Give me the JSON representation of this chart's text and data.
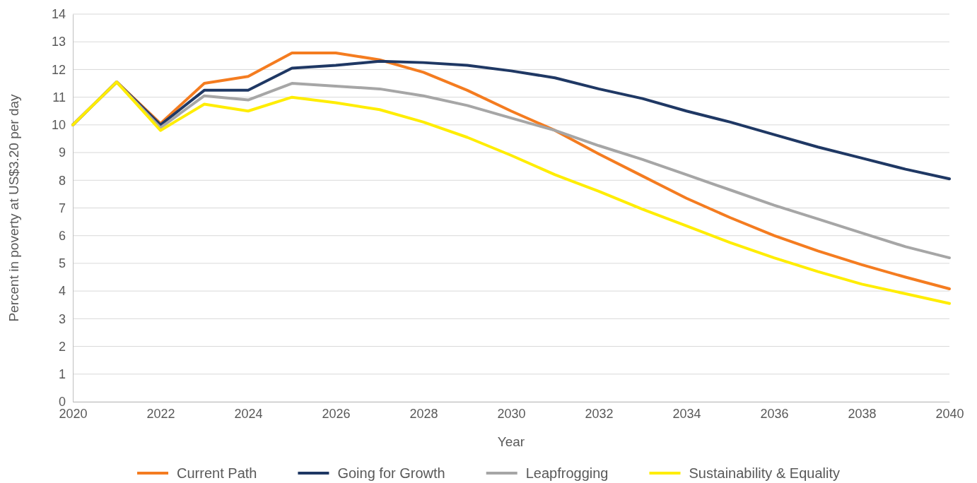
{
  "chart_data": {
    "type": "line",
    "xlabel": "Year",
    "ylabel": "Percent in poverty at US$3.20 per day",
    "x": [
      2020,
      2021,
      2022,
      2023,
      2024,
      2025,
      2026,
      2027,
      2028,
      2029,
      2030,
      2031,
      2032,
      2033,
      2034,
      2035,
      2036,
      2037,
      2038,
      2039,
      2040
    ],
    "xlim": [
      2020,
      2040
    ],
    "xticks": [
      2020,
      2022,
      2024,
      2026,
      2028,
      2030,
      2032,
      2034,
      2036,
      2038,
      2040
    ],
    "ylim": [
      0,
      14
    ],
    "yticks": [
      0,
      1,
      2,
      3,
      4,
      5,
      6,
      7,
      8,
      9,
      10,
      11,
      12,
      13,
      14
    ],
    "grid": "y",
    "legend": "bottom",
    "marker": "none",
    "line_style": "solid",
    "series": [
      {
        "name": "Current Path",
        "color": "#f47c20",
        "values": [
          10,
          11.55,
          10.05,
          11.5,
          11.75,
          12.6,
          12.6,
          12.35,
          11.9,
          11.25,
          10.5,
          9.8,
          8.95,
          8.15,
          7.35,
          6.65,
          6.0,
          5.45,
          4.95,
          4.5,
          4.08
        ]
      },
      {
        "name": "Going for Growth",
        "color": "#1f3864",
        "values": [
          10,
          11.55,
          10.0,
          11.25,
          11.25,
          12.05,
          12.15,
          12.3,
          12.25,
          12.15,
          11.95,
          11.7,
          11.3,
          10.95,
          10.5,
          10.1,
          9.65,
          9.2,
          8.8,
          8.4,
          8.05
        ]
      },
      {
        "name": "Leapfrogging",
        "color": "#a6a6a6",
        "values": [
          10,
          11.55,
          9.9,
          11.05,
          10.9,
          11.5,
          11.4,
          11.3,
          11.05,
          10.7,
          10.25,
          9.8,
          9.25,
          8.75,
          8.2,
          7.65,
          7.1,
          6.6,
          6.1,
          5.6,
          5.2
        ]
      },
      {
        "name": "Sustainability & Equality",
        "color": "#ffed00",
        "values": [
          10,
          11.55,
          9.8,
          10.75,
          10.5,
          11.0,
          10.8,
          10.55,
          10.1,
          9.55,
          8.9,
          8.2,
          7.6,
          6.95,
          6.35,
          5.75,
          5.2,
          4.7,
          4.25,
          3.9,
          3.55
        ]
      }
    ]
  }
}
